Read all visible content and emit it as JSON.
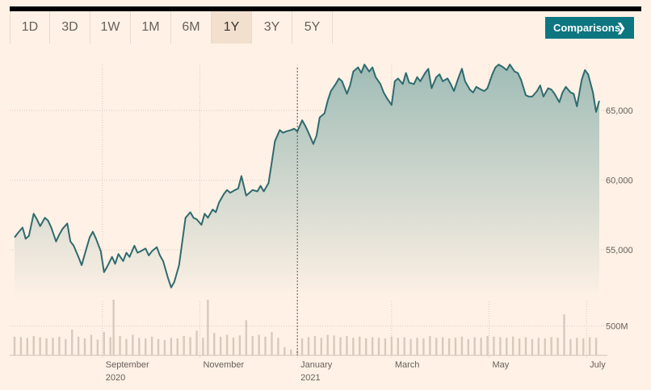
{
  "range_tabs": [
    {
      "label": "1D",
      "active": false
    },
    {
      "label": "3D",
      "active": false
    },
    {
      "label": "1W",
      "active": false
    },
    {
      "label": "1M",
      "active": false
    },
    {
      "label": "6M",
      "active": false
    },
    {
      "label": "1Y",
      "active": true
    },
    {
      "label": "3Y",
      "active": false
    },
    {
      "label": "5Y",
      "active": false
    }
  ],
  "comparisons": {
    "label": "Comparisons",
    "icon": "chevron-right-icon"
  },
  "colors": {
    "line": "#2e6b6e",
    "fill_top": "#9fbcb6",
    "volume": "#d9c9bd",
    "accent": "#0d7680"
  },
  "chart_data": {
    "type": "area",
    "title": "",
    "xlabel": "",
    "ylabel": "",
    "ylim": [
      52000,
      69000
    ],
    "y_ticks": [
      {
        "value": 55000,
        "label": "55,000"
      },
      {
        "value": 60000,
        "label": "60,000"
      },
      {
        "value": 65000,
        "label": "65,000"
      }
    ],
    "x_ticks": [
      {
        "date": "2020-09-01",
        "label": "September",
        "sub": "2020"
      },
      {
        "date": "2020-11-01",
        "label": "November",
        "sub": ""
      },
      {
        "date": "2021-01-01",
        "label": "January",
        "sub": "2021"
      },
      {
        "date": "2021-03-01",
        "label": "March",
        "sub": ""
      },
      {
        "date": "2021-05-01",
        "label": "May",
        "sub": ""
      },
      {
        "date": "2021-07-01",
        "label": "July",
        "sub": ""
      }
    ],
    "x_range": [
      "2020-07-08",
      "2021-07-09"
    ],
    "crosshair_date": "2021-01-01",
    "series": [
      {
        "values": [
          [
            "2020-07-08",
            55900
          ],
          [
            "2020-07-10",
            56200
          ],
          [
            "2020-07-13",
            56600
          ],
          [
            "2020-07-15",
            55800
          ],
          [
            "2020-07-17",
            56000
          ],
          [
            "2020-07-20",
            57600
          ],
          [
            "2020-07-22",
            57200
          ],
          [
            "2020-07-24",
            56700
          ],
          [
            "2020-07-27",
            57300
          ],
          [
            "2020-07-29",
            57100
          ],
          [
            "2020-07-31",
            56600
          ],
          [
            "2020-08-03",
            55600
          ],
          [
            "2020-08-05",
            56100
          ],
          [
            "2020-08-07",
            56500
          ],
          [
            "2020-08-10",
            56900
          ],
          [
            "2020-08-12",
            55600
          ],
          [
            "2020-08-14",
            55300
          ],
          [
            "2020-08-17",
            54500
          ],
          [
            "2020-08-19",
            53900
          ],
          [
            "2020-08-21",
            54700
          ],
          [
            "2020-08-24",
            55900
          ],
          [
            "2020-08-26",
            56300
          ],
          [
            "2020-08-28",
            55800
          ],
          [
            "2020-08-31",
            54900
          ],
          [
            "2020-09-02",
            53400
          ],
          [
            "2020-09-04",
            53800
          ],
          [
            "2020-09-07",
            54500
          ],
          [
            "2020-09-09",
            54000
          ],
          [
            "2020-09-11",
            54700
          ],
          [
            "2020-09-14",
            54200
          ],
          [
            "2020-09-16",
            54800
          ],
          [
            "2020-09-18",
            54500
          ],
          [
            "2020-09-21",
            55300
          ],
          [
            "2020-09-23",
            54800
          ],
          [
            "2020-09-25",
            54900
          ],
          [
            "2020-09-28",
            55100
          ],
          [
            "2020-09-30",
            54600
          ],
          [
            "2020-10-02",
            54900
          ],
          [
            "2020-10-05",
            55200
          ],
          [
            "2020-10-07",
            54600
          ],
          [
            "2020-10-09",
            54200
          ],
          [
            "2020-10-12",
            53000
          ],
          [
            "2020-10-14",
            52300
          ],
          [
            "2020-10-16",
            52700
          ],
          [
            "2020-10-19",
            53900
          ],
          [
            "2020-10-21",
            55600
          ],
          [
            "2020-10-23",
            57300
          ],
          [
            "2020-10-26",
            57700
          ],
          [
            "2020-10-28",
            57300
          ],
          [
            "2020-10-30",
            57200
          ],
          [
            "2020-11-02",
            56800
          ],
          [
            "2020-11-04",
            57600
          ],
          [
            "2020-11-06",
            57300
          ],
          [
            "2020-11-09",
            57900
          ],
          [
            "2020-11-11",
            57700
          ],
          [
            "2020-11-13",
            58400
          ],
          [
            "2020-11-16",
            59000
          ],
          [
            "2020-11-18",
            59300
          ],
          [
            "2020-11-20",
            59100
          ],
          [
            "2020-11-23",
            59300
          ],
          [
            "2020-11-25",
            59400
          ],
          [
            "2020-11-27",
            60300
          ],
          [
            "2020-11-30",
            58900
          ],
          [
            "2020-12-02",
            59100
          ],
          [
            "2020-12-04",
            59300
          ],
          [
            "2020-12-07",
            59200
          ],
          [
            "2020-12-09",
            59600
          ],
          [
            "2020-12-11",
            59200
          ],
          [
            "2020-12-14",
            59800
          ],
          [
            "2020-12-16",
            61300
          ],
          [
            "2020-12-18",
            62800
          ],
          [
            "2020-12-21",
            63600
          ],
          [
            "2020-12-23",
            63400
          ],
          [
            "2020-12-25",
            63500
          ],
          [
            "2020-12-28",
            63600
          ],
          [
            "2020-12-30",
            63700
          ],
          [
            "2021-01-01",
            63500
          ],
          [
            "2021-01-04",
            64300
          ],
          [
            "2021-01-06",
            63900
          ],
          [
            "2021-01-08",
            63400
          ],
          [
            "2021-01-11",
            62600
          ],
          [
            "2021-01-13",
            63200
          ],
          [
            "2021-01-15",
            64500
          ],
          [
            "2021-01-18",
            64800
          ],
          [
            "2021-01-20",
            65700
          ],
          [
            "2021-01-22",
            66400
          ],
          [
            "2021-01-25",
            66900
          ],
          [
            "2021-01-27",
            67300
          ],
          [
            "2021-01-29",
            67100
          ],
          [
            "2021-02-01",
            66200
          ],
          [
            "2021-02-03",
            66800
          ],
          [
            "2021-02-05",
            67800
          ],
          [
            "2021-02-08",
            68100
          ],
          [
            "2021-02-10",
            67700
          ],
          [
            "2021-02-12",
            68300
          ],
          [
            "2021-02-15",
            67800
          ],
          [
            "2021-02-17",
            68100
          ],
          [
            "2021-02-19",
            67400
          ],
          [
            "2021-02-22",
            66900
          ],
          [
            "2021-02-24",
            66300
          ],
          [
            "2021-02-26",
            65900
          ],
          [
            "2021-03-01",
            65400
          ],
          [
            "2021-03-03",
            67100
          ],
          [
            "2021-03-05",
            67300
          ],
          [
            "2021-03-08",
            66900
          ],
          [
            "2021-03-10",
            67700
          ],
          [
            "2021-03-12",
            67000
          ],
          [
            "2021-03-15",
            66900
          ],
          [
            "2021-03-17",
            67400
          ],
          [
            "2021-03-19",
            67100
          ],
          [
            "2021-03-22",
            67700
          ],
          [
            "2021-03-24",
            68000
          ],
          [
            "2021-03-26",
            66600
          ],
          [
            "2021-03-29",
            67400
          ],
          [
            "2021-03-31",
            67600
          ],
          [
            "2021-04-02",
            67100
          ],
          [
            "2021-04-05",
            67300
          ],
          [
            "2021-04-07",
            66900
          ],
          [
            "2021-04-09",
            66400
          ],
          [
            "2021-04-12",
            67400
          ],
          [
            "2021-04-14",
            68000
          ],
          [
            "2021-04-16",
            67100
          ],
          [
            "2021-04-19",
            66500
          ],
          [
            "2021-04-21",
            66300
          ],
          [
            "2021-04-23",
            66700
          ],
          [
            "2021-04-26",
            66500
          ],
          [
            "2021-04-28",
            66400
          ],
          [
            "2021-04-30",
            66600
          ],
          [
            "2021-05-03",
            67600
          ],
          [
            "2021-05-05",
            68100
          ],
          [
            "2021-05-07",
            68300
          ],
          [
            "2021-05-10",
            68100
          ],
          [
            "2021-05-12",
            67900
          ],
          [
            "2021-05-14",
            68300
          ],
          [
            "2021-05-17",
            67800
          ],
          [
            "2021-05-19",
            67700
          ],
          [
            "2021-05-21",
            67200
          ],
          [
            "2021-05-24",
            66100
          ],
          [
            "2021-05-26",
            66000
          ],
          [
            "2021-05-28",
            66000
          ],
          [
            "2021-05-31",
            66400
          ],
          [
            "2021-06-02",
            66800
          ],
          [
            "2021-06-04",
            66000
          ],
          [
            "2021-06-07",
            66600
          ],
          [
            "2021-06-09",
            66500
          ],
          [
            "2021-06-11",
            66200
          ],
          [
            "2021-06-14",
            65600
          ],
          [
            "2021-06-16",
            66300
          ],
          [
            "2021-06-18",
            66700
          ],
          [
            "2021-06-21",
            66300
          ],
          [
            "2021-06-23",
            66200
          ],
          [
            "2021-06-25",
            65300
          ],
          [
            "2021-06-28",
            67200
          ],
          [
            "2021-06-30",
            67900
          ],
          [
            "2021-07-02",
            67600
          ],
          [
            "2021-07-05",
            66300
          ],
          [
            "2021-07-07",
            64900
          ],
          [
            "2021-07-09",
            65700
          ]
        ]
      }
    ],
    "volume": {
      "axis_label": "500M",
      "axis_value": 500,
      "ylim": [
        0,
        1100
      ],
      "values": [
        [
          "2020-07-08",
          320
        ],
        [
          "2020-07-12",
          310
        ],
        [
          "2020-07-16",
          300
        ],
        [
          "2020-07-20",
          330
        ],
        [
          "2020-07-24",
          310
        ],
        [
          "2020-07-28",
          290
        ],
        [
          "2020-08-01",
          300
        ],
        [
          "2020-08-05",
          320
        ],
        [
          "2020-08-09",
          280
        ],
        [
          "2020-08-13",
          440
        ],
        [
          "2020-08-17",
          320
        ],
        [
          "2020-08-21",
          290
        ],
        [
          "2020-08-25",
          350
        ],
        [
          "2020-08-29",
          270
        ],
        [
          "2020-09-02",
          400
        ],
        [
          "2020-09-06",
          310
        ],
        [
          "2020-09-08",
          1000
        ],
        [
          "2020-09-12",
          330
        ],
        [
          "2020-09-16",
          280
        ],
        [
          "2020-09-20",
          350
        ],
        [
          "2020-09-24",
          300
        ],
        [
          "2020-09-28",
          290
        ],
        [
          "2020-10-02",
          320
        ],
        [
          "2020-10-06",
          280
        ],
        [
          "2020-10-10",
          260
        ],
        [
          "2020-10-14",
          300
        ],
        [
          "2020-10-18",
          290
        ],
        [
          "2020-10-22",
          330
        ],
        [
          "2020-10-26",
          310
        ],
        [
          "2020-10-30",
          420
        ],
        [
          "2020-11-03",
          300
        ],
        [
          "2020-11-06",
          990
        ],
        [
          "2020-11-10",
          380
        ],
        [
          "2020-11-14",
          320
        ],
        [
          "2020-11-18",
          350
        ],
        [
          "2020-11-22",
          300
        ],
        [
          "2020-11-26",
          340
        ],
        [
          "2020-11-30",
          600
        ],
        [
          "2020-12-04",
          330
        ],
        [
          "2020-12-08",
          350
        ],
        [
          "2020-12-12",
          320
        ],
        [
          "2020-12-16",
          400
        ],
        [
          "2020-12-20",
          300
        ],
        [
          "2020-12-24",
          140
        ],
        [
          "2020-12-28",
          100
        ],
        [
          "2021-01-01",
          80
        ],
        [
          "2021-01-04",
          290
        ],
        [
          "2021-01-08",
          310
        ],
        [
          "2021-01-12",
          330
        ],
        [
          "2021-01-16",
          300
        ],
        [
          "2021-01-20",
          350
        ],
        [
          "2021-01-24",
          340
        ],
        [
          "2021-01-28",
          310
        ],
        [
          "2021-02-01",
          330
        ],
        [
          "2021-02-05",
          300
        ],
        [
          "2021-02-09",
          320
        ],
        [
          "2021-02-13",
          290
        ],
        [
          "2021-02-17",
          310
        ],
        [
          "2021-02-21",
          300
        ],
        [
          "2021-02-25",
          290
        ],
        [
          "2021-03-01",
          320
        ],
        [
          "2021-03-05",
          300
        ],
        [
          "2021-03-09",
          310
        ],
        [
          "2021-03-13",
          280
        ],
        [
          "2021-03-17",
          300
        ],
        [
          "2021-03-21",
          290
        ],
        [
          "2021-03-25",
          330
        ],
        [
          "2021-03-29",
          300
        ],
        [
          "2021-04-02",
          310
        ],
        [
          "2021-04-06",
          290
        ],
        [
          "2021-04-10",
          300
        ],
        [
          "2021-04-14",
          320
        ],
        [
          "2021-04-18",
          280
        ],
        [
          "2021-04-22",
          310
        ],
        [
          "2021-04-26",
          300
        ],
        [
          "2021-04-30",
          330
        ],
        [
          "2021-05-04",
          320
        ],
        [
          "2021-05-08",
          310
        ],
        [
          "2021-05-12",
          300
        ],
        [
          "2021-05-16",
          320
        ],
        [
          "2021-05-20",
          290
        ],
        [
          "2021-05-24",
          310
        ],
        [
          "2021-05-28",
          280
        ],
        [
          "2021-06-01",
          300
        ],
        [
          "2021-06-05",
          290
        ],
        [
          "2021-06-09",
          310
        ],
        [
          "2021-06-13",
          300
        ],
        [
          "2021-06-17",
          700
        ],
        [
          "2021-06-21",
          280
        ],
        [
          "2021-06-25",
          300
        ],
        [
          "2021-06-29",
          290
        ],
        [
          "2021-07-03",
          310
        ],
        [
          "2021-07-07",
          300
        ]
      ]
    }
  }
}
